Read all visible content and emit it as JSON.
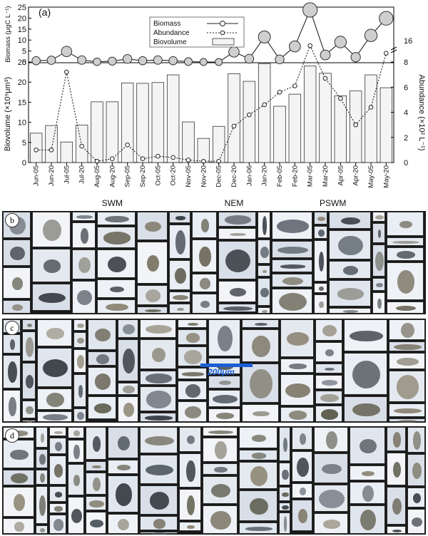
{
  "panel_a_label": "(a)",
  "panel_labels": [
    "b",
    "c",
    "d"
  ],
  "scale_bar_label": "200μm",
  "chart_data": {
    "type": "bar+line",
    "categories": [
      "Jun-05",
      "Jun-20",
      "Jul-05",
      "Jul-20",
      "Aug-05",
      "Aug-20",
      "Sep-05",
      "Sep-20",
      "Oct-05",
      "Oct-20",
      "Nov-05",
      "Nov-20",
      "Dec-05",
      "Dec-20",
      "Jan-06",
      "Jan-20",
      "Feb-05",
      "Feb-20",
      "Mar-05",
      "Mar-20",
      "Apr-05",
      "Apr-20",
      "May-05",
      "May-20"
    ],
    "seasons": [
      {
        "label": "SWM",
        "from": 0,
        "to": 10
      },
      {
        "label": "NEM",
        "from": 11,
        "to": 15
      },
      {
        "label": "PSWM",
        "from": 16,
        "to": 23
      }
    ],
    "biovolume": {
      "name": "Biovolume",
      "ylabel": "Biovolume (×10⁹μm³)",
      "ylim": [
        0,
        25
      ],
      "yticks": [
        0,
        5,
        10,
        15,
        20,
        25
      ],
      "values": [
        7.3,
        9.2,
        5.1,
        9.3,
        15.1,
        15.1,
        19.8,
        19.7,
        19.9,
        21.8,
        10.1,
        6.0,
        9.0,
        22.1,
        20.2,
        24.6,
        14.0,
        17.0,
        24.0,
        22.2,
        16.6,
        17.8,
        21.8,
        18.6
      ]
    },
    "abundance": {
      "name": "Abundance",
      "ylabel": "Abundance (×10² L⁻¹)",
      "ylim": [
        0,
        8
      ],
      "yticks": [
        0,
        2,
        4,
        6,
        8
      ],
      "break_label": "16",
      "values": [
        1.0,
        1.0,
        7.2,
        1.3,
        0.1,
        0.3,
        1.4,
        0.3,
        0.5,
        0.4,
        0.2,
        0.1,
        0.1,
        2.9,
        3.8,
        4.6,
        5.6,
        6.1,
        9.8,
        6.7,
        5.1,
        3.0,
        4.4,
        8.7
      ]
    },
    "biomass": {
      "name": "Biomass",
      "ylabel": "Biomass (μgC L⁻¹)",
      "ylim": [
        0,
        25
      ],
      "yticks": [
        0,
        5,
        10,
        15,
        20,
        25
      ],
      "values": [
        0.6,
        0.8,
        4.8,
        0.9,
        0.1,
        0.4,
        1.4,
        0.6,
        0.9,
        0.6,
        0.2,
        0.0,
        0.0,
        4.6,
        1.5,
        11.4,
        1.2,
        7.1,
        23.7,
        3.2,
        9.1,
        2.2,
        12.1,
        19.9
      ]
    },
    "legend": [
      "Biomass",
      "Abundance",
      "Biovolume"
    ],
    "legend_position": "top-center",
    "grid": false
  }
}
